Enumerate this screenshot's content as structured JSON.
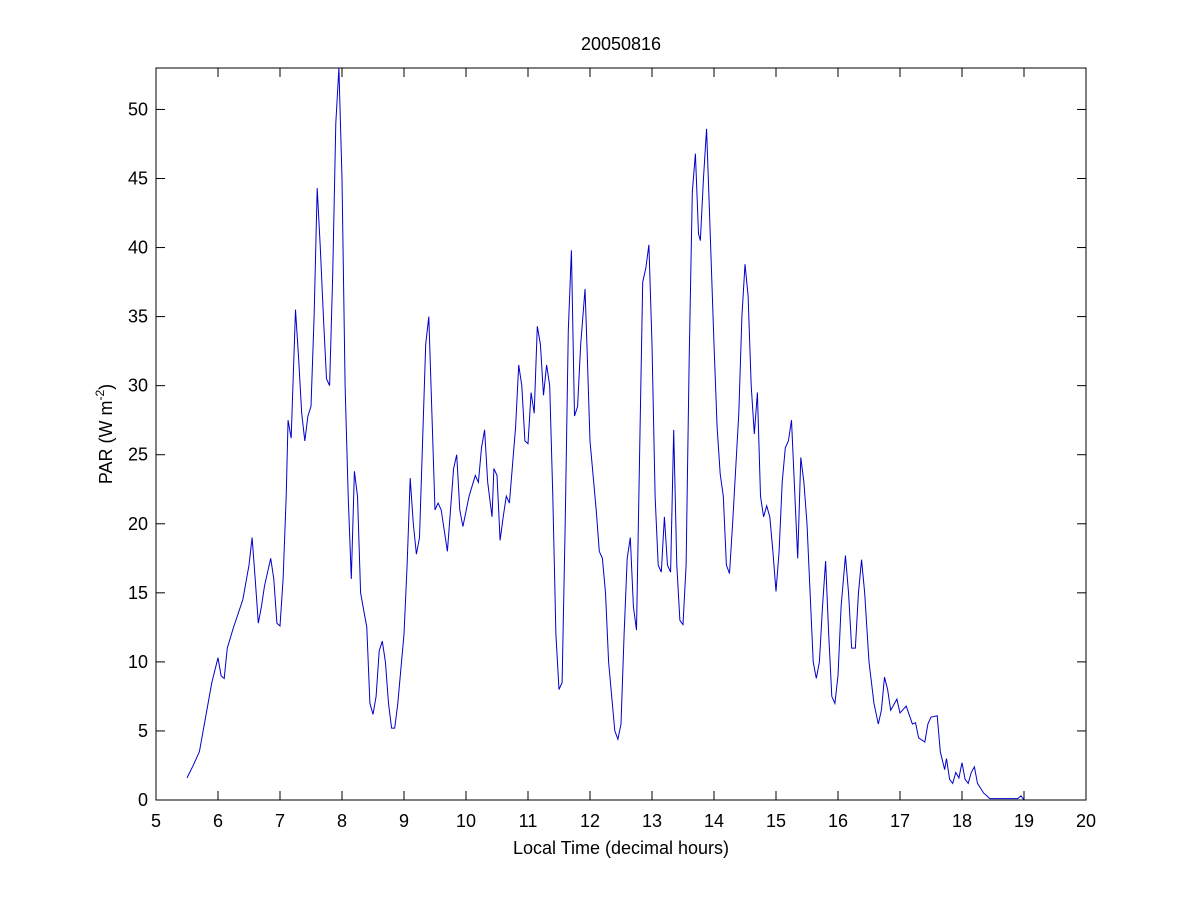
{
  "chart_data": {
    "type": "line",
    "title": "20050816",
    "xlabel": "Local Time (decimal hours)",
    "ylabel": [
      "PAR (W m",
      "-2",
      ")"
    ],
    "xlim": [
      5,
      20
    ],
    "xticks": [
      5,
      6,
      7,
      8,
      9,
      10,
      11,
      12,
      13,
      14,
      15,
      16,
      17,
      18,
      19,
      20
    ],
    "ylim": [
      0,
      53
    ],
    "yticks": [
      0,
      5,
      10,
      15,
      20,
      25,
      30,
      35,
      40,
      45,
      50
    ],
    "grid": false,
    "series": [
      {
        "color": "#0000cc",
        "x": [
          5.5,
          5.6,
          5.7,
          5.8,
          5.9,
          6.0,
          6.05,
          6.1,
          6.15,
          6.25,
          6.4,
          6.5,
          6.55,
          6.6,
          6.65,
          6.7,
          6.75,
          6.85,
          6.9,
          6.95,
          7.0,
          7.05,
          7.1,
          7.13,
          7.18,
          7.25,
          7.3,
          7.35,
          7.4,
          7.45,
          7.5,
          7.55,
          7.6,
          7.65,
          7.7,
          7.75,
          7.8,
          7.85,
          7.9,
          7.95,
          8.0,
          8.05,
          8.1,
          8.15,
          8.2,
          8.25,
          8.3,
          8.4,
          8.45,
          8.5,
          8.55,
          8.6,
          8.65,
          8.7,
          8.75,
          8.8,
          8.85,
          8.9,
          9.0,
          9.05,
          9.1,
          9.15,
          9.2,
          9.25,
          9.3,
          9.35,
          9.4,
          9.45,
          9.5,
          9.55,
          9.6,
          9.7,
          9.8,
          9.85,
          9.9,
          9.95,
          10.05,
          10.15,
          10.2,
          10.25,
          10.3,
          10.35,
          10.42,
          10.45,
          10.5,
          10.55,
          10.6,
          10.65,
          10.7,
          10.8,
          10.85,
          10.9,
          10.95,
          11.0,
          11.05,
          11.1,
          11.15,
          11.2,
          11.25,
          11.3,
          11.35,
          11.4,
          11.45,
          11.5,
          11.55,
          11.6,
          11.65,
          11.7,
          11.75,
          11.8,
          11.85,
          11.92,
          11.95,
          12.0,
          12.1,
          12.15,
          12.2,
          12.25,
          12.3,
          12.4,
          12.45,
          12.5,
          12.55,
          12.6,
          12.65,
          12.7,
          12.75,
          12.8,
          12.85,
          12.9,
          12.95,
          13.0,
          13.05,
          13.1,
          13.15,
          13.2,
          13.25,
          13.3,
          13.35,
          13.4,
          13.45,
          13.5,
          13.55,
          13.6,
          13.65,
          13.7,
          13.75,
          13.78,
          13.83,
          13.88,
          13.92,
          14.0,
          14.05,
          14.1,
          14.15,
          14.2,
          14.25,
          14.3,
          14.4,
          14.45,
          14.5,
          14.55,
          14.6,
          14.65,
          14.7,
          14.75,
          14.8,
          14.85,
          14.9,
          14.95,
          15.0,
          15.05,
          15.1,
          15.15,
          15.2,
          15.25,
          15.3,
          15.35,
          15.4,
          15.45,
          15.5,
          15.55,
          15.6,
          15.65,
          15.7,
          15.75,
          15.8,
          15.85,
          15.9,
          15.95,
          16.0,
          16.05,
          16.12,
          16.17,
          16.22,
          16.28,
          16.33,
          16.38,
          16.43,
          16.5,
          16.58,
          16.65,
          16.7,
          16.75,
          16.8,
          16.85,
          16.95,
          17.0,
          17.1,
          17.2,
          17.25,
          17.3,
          17.4,
          17.45,
          17.5,
          17.6,
          17.65,
          17.72,
          17.75,
          17.8,
          17.85,
          17.9,
          17.95,
          18.0,
          18.05,
          18.1,
          18.15,
          18.2,
          18.25,
          18.35,
          18.45,
          18.9,
          18.95,
          19.0
        ],
        "values": [
          1.6,
          2.5,
          3.5,
          6,
          8.5,
          10.3,
          9,
          8.8,
          11,
          12.5,
          14.5,
          17,
          19,
          16,
          12.8,
          14,
          15.5,
          17.5,
          16,
          12.8,
          12.6,
          16,
          22,
          27.5,
          26.2,
          35.5,
          32,
          28,
          26,
          27.8,
          28.5,
          35,
          44.3,
          40,
          35,
          30.5,
          30,
          38,
          49,
          53,
          45,
          30,
          22,
          16,
          23.8,
          22,
          15,
          12.5,
          7,
          6.2,
          7.5,
          10.8,
          11.5,
          10,
          7,
          5.2,
          5.2,
          7,
          12,
          17,
          23.3,
          20,
          17.8,
          19,
          26,
          33,
          35,
          28,
          21,
          21.5,
          21,
          18,
          24,
          25,
          21,
          19.8,
          22,
          23.5,
          23,
          25.5,
          26.8,
          23,
          20.5,
          24,
          23.5,
          18.8,
          20.5,
          22,
          21.5,
          27,
          31.5,
          30,
          26,
          25.8,
          29.5,
          28,
          34.3,
          33,
          29.3,
          31.5,
          30,
          22,
          12,
          8,
          8.5,
          20,
          34,
          39.8,
          27.8,
          28.5,
          33,
          37,
          33,
          26,
          21,
          18,
          17.5,
          15,
          10,
          5,
          4.4,
          5.5,
          12,
          17.5,
          19,
          14,
          12.3,
          25,
          37.5,
          38.5,
          40.2,
          33,
          22,
          17,
          16.5,
          20.5,
          17,
          16.5,
          26.8,
          17,
          13,
          12.7,
          17,
          32,
          44,
          46.8,
          41,
          40.5,
          45,
          48.6,
          43.5,
          33,
          27,
          23.6,
          22,
          17,
          16.4,
          20,
          28,
          35,
          38.8,
          36.5,
          30,
          26.5,
          29.5,
          22,
          20.5,
          21.3,
          20.5,
          18,
          15.1,
          18,
          23,
          25.5,
          26,
          27.5,
          22.5,
          17.5,
          24.8,
          23,
          20,
          15,
          10,
          8.8,
          10,
          14,
          17.3,
          12,
          7.5,
          7,
          9,
          14,
          17.7,
          15,
          11,
          11,
          15,
          17.4,
          15,
          10,
          7,
          5.5,
          6.5,
          8.9,
          8,
          6.5,
          7.3,
          6.3,
          6.8,
          5.5,
          5.6,
          4.5,
          4.2,
          5.5,
          6,
          6.1,
          3.5,
          2.2,
          3,
          1.5,
          1.2,
          2,
          1.6,
          2.7,
          1.5,
          1.2,
          2,
          2.4,
          1.2,
          0.5,
          0.1,
          0.1,
          0.3,
          0
        ]
      }
    ]
  }
}
